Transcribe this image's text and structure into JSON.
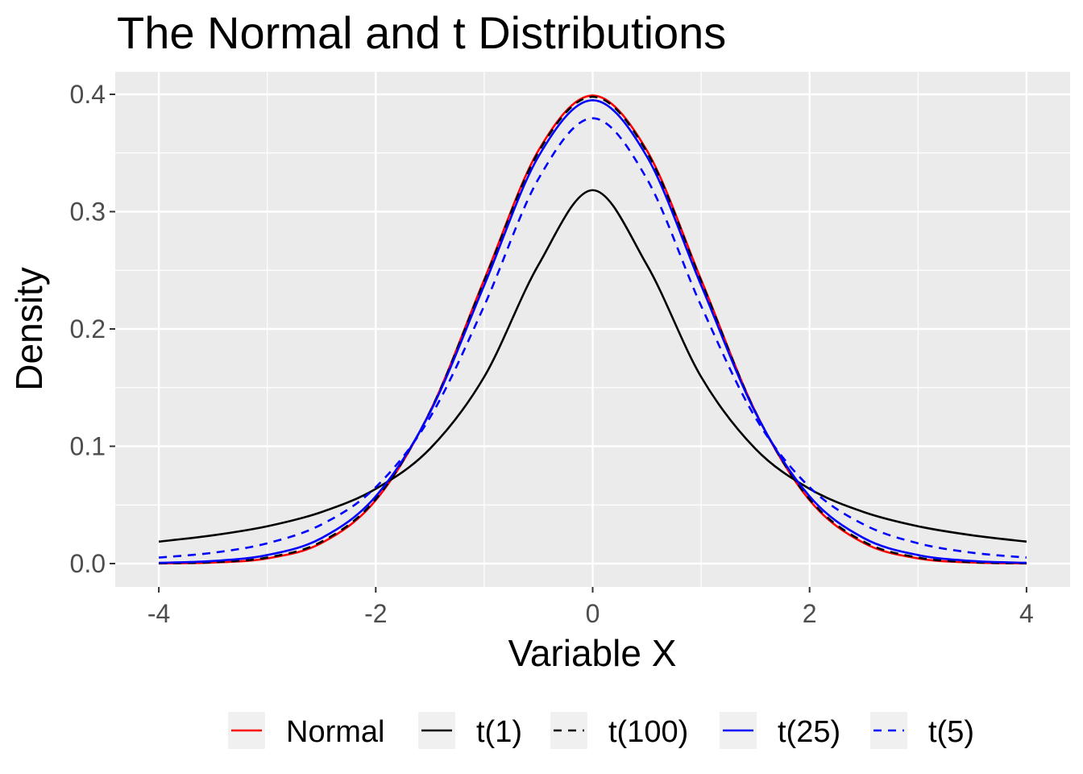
{
  "chart_data": {
    "type": "line",
    "title": "The Normal and t Distributions",
    "xlabel": "Variable X",
    "ylabel": "Density",
    "xlim": [
      -4,
      4
    ],
    "ylim": [
      0,
      0.4
    ],
    "xticks": [
      "-4",
      "-2",
      "0",
      "2",
      "4"
    ],
    "yticks": [
      "0.0",
      "0.1",
      "0.2",
      "0.3",
      "0.4"
    ],
    "grid": true,
    "legend_position": "bottom",
    "x": [
      -4,
      -3.5,
      -3,
      -2.5,
      -2,
      -1.5,
      -1,
      -0.5,
      0,
      0.5,
      1,
      1.5,
      2,
      2.5,
      3,
      3.5,
      4
    ],
    "series": [
      {
        "name": "Normal",
        "color": "#FF0000",
        "dash": "solid",
        "values": [
          0.000134,
          0.00087,
          0.00443,
          0.0175,
          0.054,
          0.1295,
          0.242,
          0.3521,
          0.3989,
          0.3521,
          0.242,
          0.1295,
          0.054,
          0.0175,
          0.00443,
          0.00087,
          0.000134
        ]
      },
      {
        "name": "t(1)",
        "color": "#000000",
        "dash": "solid",
        "values": [
          0.0187,
          0.0241,
          0.0318,
          0.0439,
          0.0637,
          0.0979,
          0.1592,
          0.2546,
          0.3183,
          0.2546,
          0.1592,
          0.0979,
          0.0637,
          0.0439,
          0.0318,
          0.0241,
          0.0187
        ]
      },
      {
        "name": "t(100)",
        "color": "#000000",
        "dash": "dashed",
        "values": [
          0.000221,
          0.00116,
          0.00513,
          0.0186,
          0.0549,
          0.1294,
          0.2408,
          0.3508,
          0.3979,
          0.3508,
          0.2408,
          0.1294,
          0.0549,
          0.0186,
          0.00513,
          0.00116,
          0.000221
        ]
      },
      {
        "name": "t(25)",
        "color": "#0000FF",
        "dash": "solid",
        "values": [
          0.000636,
          0.00221,
          0.00725,
          0.0217,
          0.0573,
          0.1288,
          0.2372,
          0.347,
          0.395,
          0.347,
          0.2372,
          0.1288,
          0.0573,
          0.0217,
          0.00725,
          0.00221,
          0.000636
        ]
      },
      {
        "name": "t(5)",
        "color": "#0000FF",
        "dash": "dashed",
        "values": [
          0.00512,
          0.00924,
          0.0173,
          0.0333,
          0.0651,
          0.1245,
          0.2197,
          0.3279,
          0.3796,
          0.3279,
          0.2197,
          0.1245,
          0.0651,
          0.0333,
          0.0173,
          0.00924,
          0.00512
        ]
      }
    ]
  }
}
